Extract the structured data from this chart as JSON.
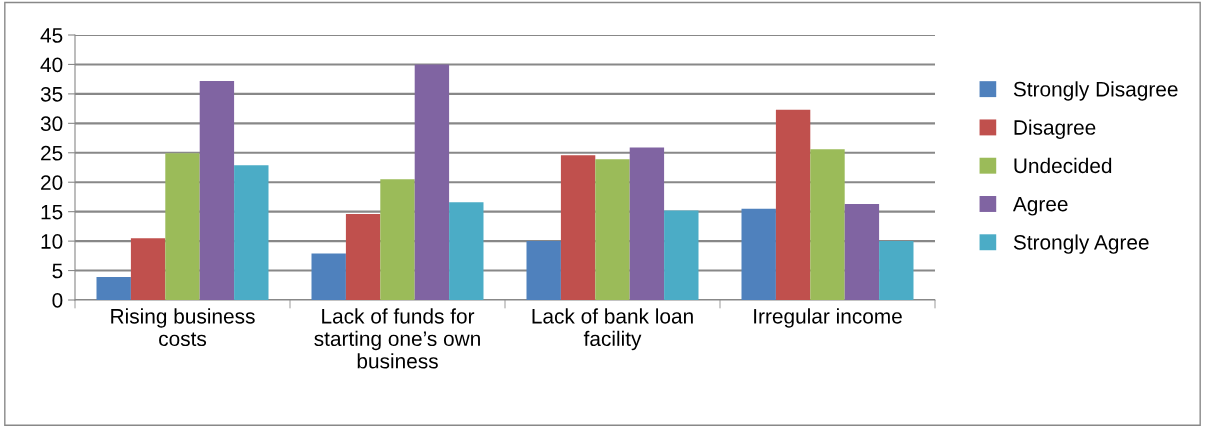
{
  "chart_data": {
    "type": "bar",
    "categories": [
      "Rising business costs",
      "Lack of funds for starting one’s own business",
      "Lack of bank loan facility",
      "Irregular income"
    ],
    "series": [
      {
        "name": "Strongly Disagree",
        "color": "#4f81bd",
        "values": [
          3.9,
          7.9,
          10,
          15.5
        ]
      },
      {
        "name": "Disagree",
        "color": "#c0504d",
        "values": [
          10.5,
          14.6,
          24.6,
          32.3
        ]
      },
      {
        "name": "Undecided",
        "color": "#9bbb59",
        "values": [
          24.9,
          20.5,
          23.9,
          25.6
        ]
      },
      {
        "name": "Agree",
        "color": "#8064a2",
        "values": [
          37.2,
          40,
          25.9,
          16.3
        ]
      },
      {
        "name": "Strongly Agree",
        "color": "#4bacc6",
        "values": [
          22.9,
          16.6,
          15.2,
          10
        ]
      }
    ],
    "ylim": [
      0,
      45
    ],
    "yticks": [
      0,
      5,
      10,
      15,
      20,
      25,
      30,
      35,
      40,
      45
    ],
    "grid": "y",
    "legend": "right"
  }
}
